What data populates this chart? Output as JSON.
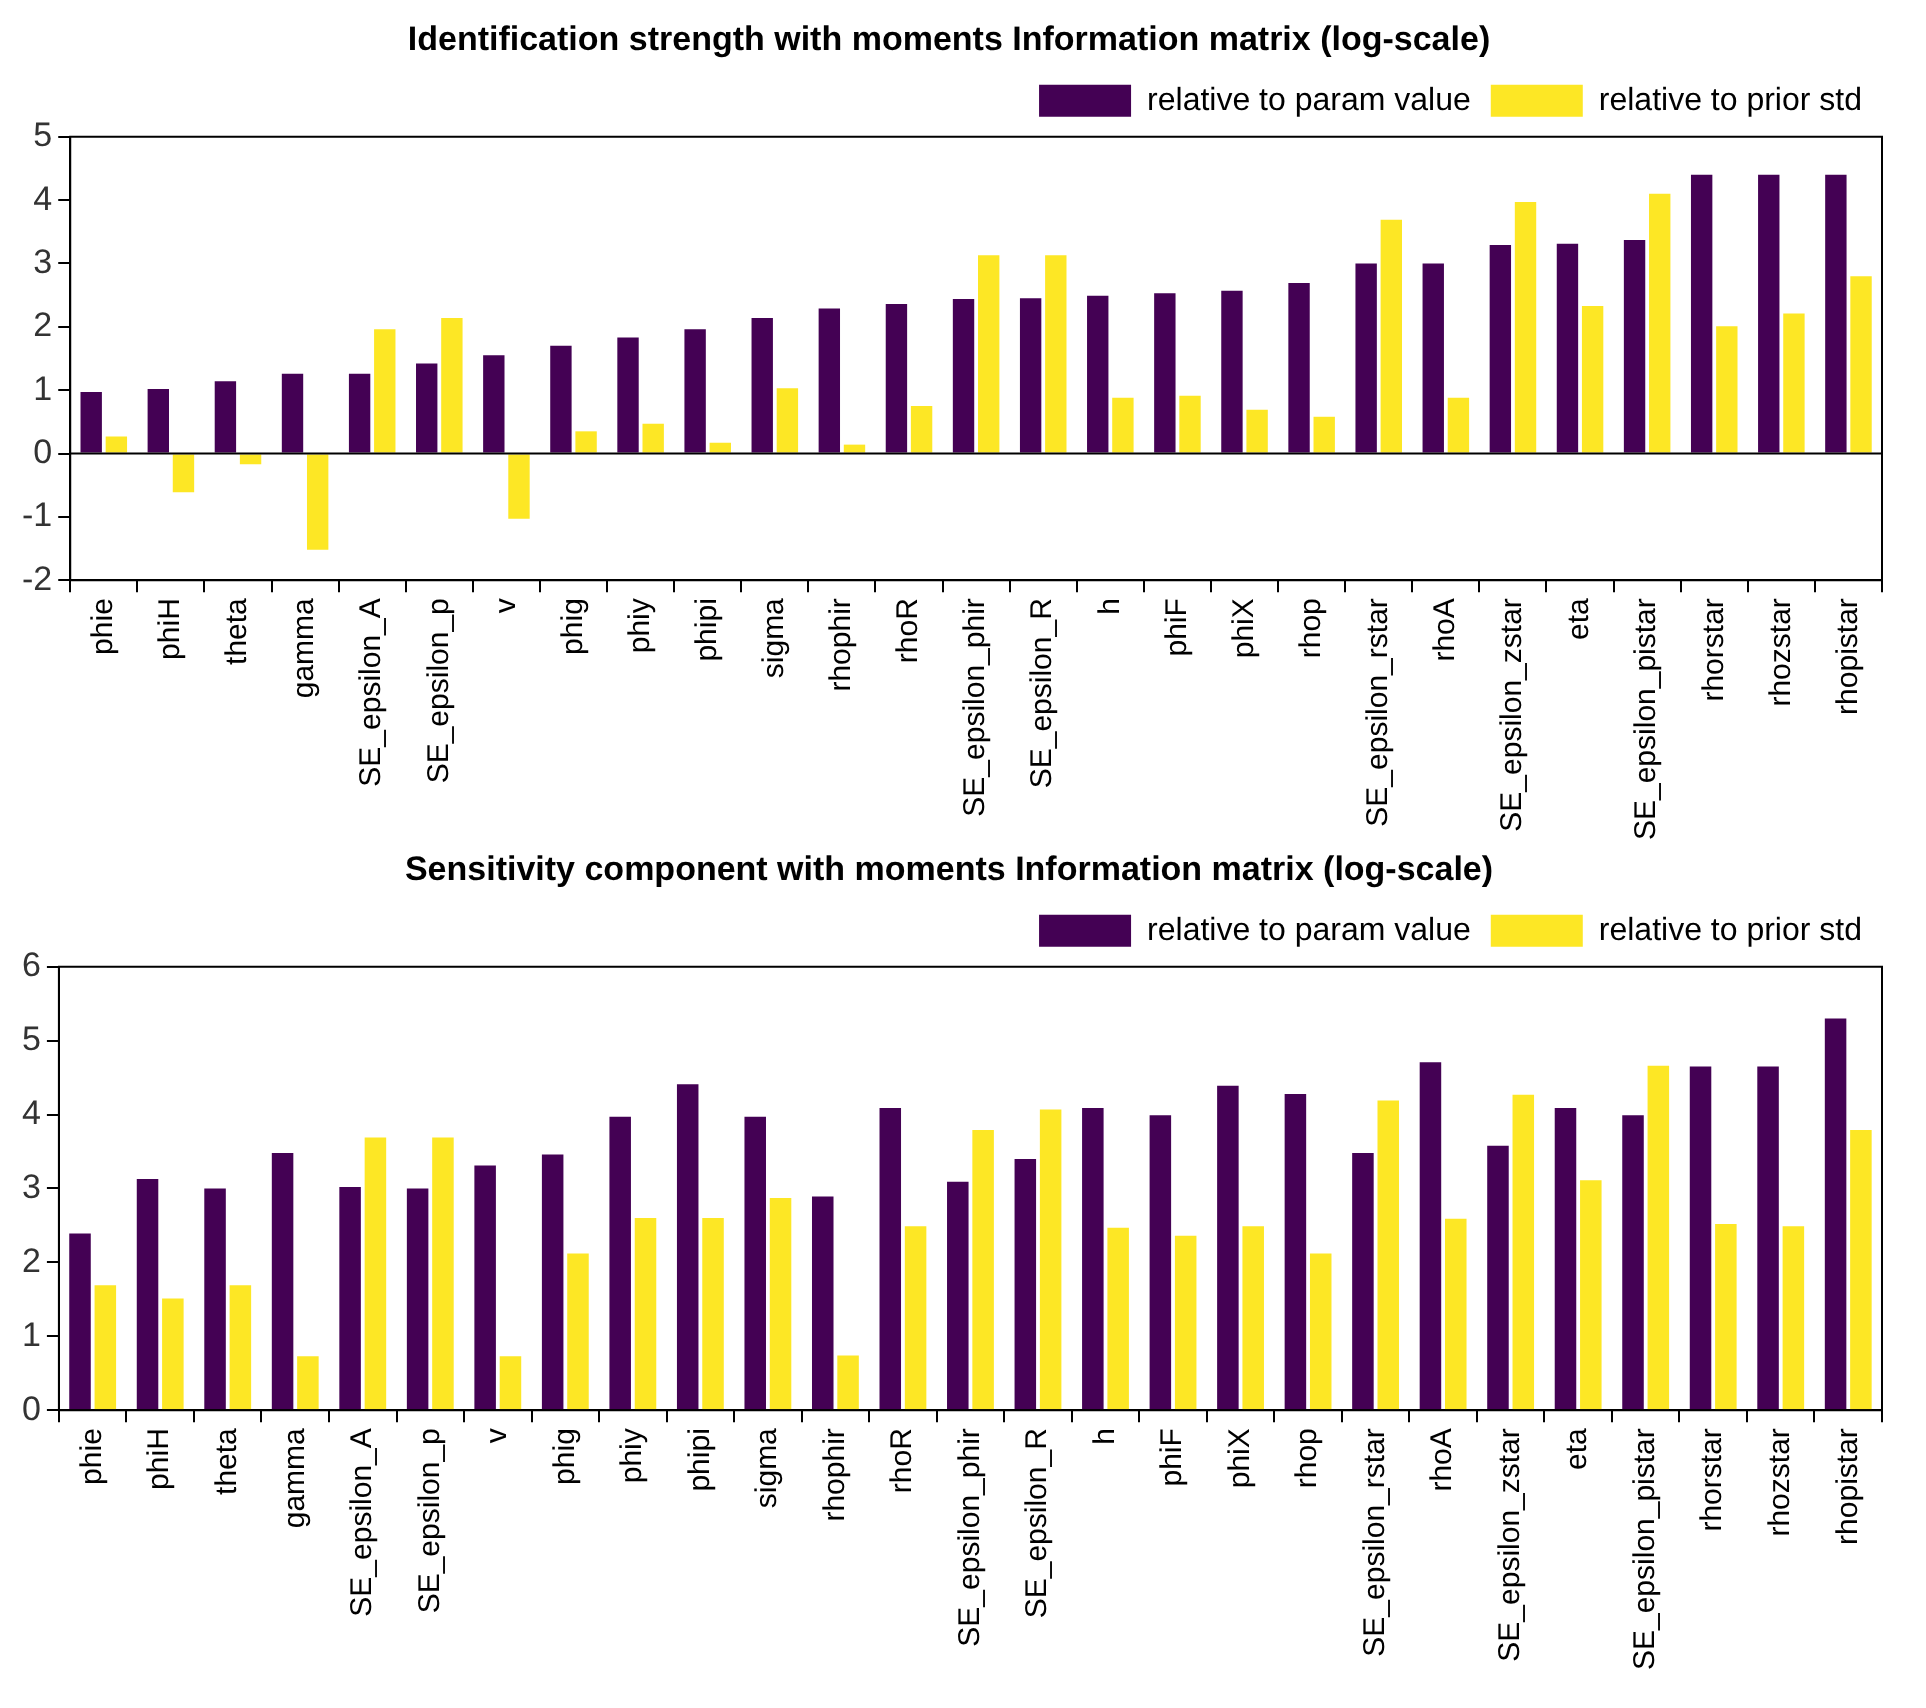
{
  "chart_data": [
    {
      "type": "bar",
      "title": "Identification strength with moments Information matrix (log-scale)",
      "categories": [
        "phie",
        "phiH",
        "theta",
        "gamma",
        "SE_epsilon_A",
        "SE_epsilon_p",
        "v",
        "phig",
        "phiy",
        "phipi",
        "sigma",
        "rhophir",
        "rhoR",
        "SE_epsilon_phir",
        "SE_epsilon_R",
        "h",
        "phiF",
        "phiX",
        "rhop",
        "SE_epsilon_rstar",
        "rhoA",
        "SE_epsilon_zstar",
        "eta",
        "SE_epsilon_pistar",
        "rhorstar",
        "rhozstar",
        "rhopistar"
      ],
      "series": [
        {
          "name": "relative to param value",
          "color": "#440154",
          "values": [
            0.97,
            1.02,
            1.14,
            1.26,
            1.26,
            1.42,
            1.55,
            1.7,
            1.83,
            1.96,
            2.14,
            2.29,
            2.36,
            2.44,
            2.45,
            2.49,
            2.53,
            2.57,
            2.69,
            3.0,
            3.0,
            3.29,
            3.31,
            3.37,
            4.4,
            4.4,
            4.4
          ]
        },
        {
          "name": "relative to prior std",
          "color": "#fde725",
          "values": [
            0.27,
            -0.61,
            -0.17,
            -1.52,
            1.96,
            2.14,
            -1.03,
            0.35,
            0.47,
            0.17,
            1.03,
            0.14,
            0.75,
            3.13,
            3.13,
            0.88,
            0.91,
            0.69,
            0.58,
            3.69,
            0.88,
            3.97,
            2.33,
            4.1,
            2.01,
            2.21,
            2.8
          ]
        }
      ],
      "ylim": [
        -2,
        5
      ],
      "yticks": [
        -2,
        -1,
        0,
        1,
        2,
        3,
        4,
        5
      ],
      "legend": "top right"
    },
    {
      "type": "bar",
      "title": "Sensitivity component with moments Information matrix (log-scale)",
      "categories": [
        "phie",
        "phiH",
        "theta",
        "gamma",
        "SE_epsilon_A",
        "SE_epsilon_p",
        "v",
        "phig",
        "phiy",
        "phipi",
        "sigma",
        "rhophir",
        "rhoR",
        "SE_epsilon_phir",
        "SE_epsilon_R",
        "h",
        "phiF",
        "phiX",
        "rhop",
        "SE_epsilon_rstar",
        "rhoA",
        "SE_epsilon_zstar",
        "eta",
        "SE_epsilon_pistar",
        "rhorstar",
        "rhozstar",
        "rhopistar"
      ],
      "series": [
        {
          "name": "relative to param value",
          "color": "#440154",
          "values": [
            2.39,
            3.13,
            3.0,
            3.48,
            3.02,
            3.0,
            3.31,
            3.46,
            3.97,
            4.41,
            3.97,
            2.89,
            4.09,
            3.09,
            3.4,
            4.09,
            3.99,
            4.39,
            4.28,
            3.48,
            4.71,
            3.58,
            4.09,
            3.99,
            4.65,
            4.65,
            5.3
          ]
        },
        {
          "name": "relative to prior std",
          "color": "#fde725",
          "values": [
            1.69,
            1.51,
            1.69,
            0.73,
            3.69,
            3.69,
            0.73,
            2.12,
            2.6,
            2.6,
            2.87,
            0.74,
            2.49,
            3.79,
            4.07,
            2.47,
            2.36,
            2.49,
            2.12,
            4.19,
            2.59,
            4.27,
            3.11,
            4.66,
            2.52,
            2.49,
            3.79
          ]
        }
      ],
      "ylim": [
        0,
        6
      ],
      "yticks": [
        0,
        1,
        2,
        3,
        4,
        5,
        6
      ],
      "legend": "top right"
    }
  ]
}
